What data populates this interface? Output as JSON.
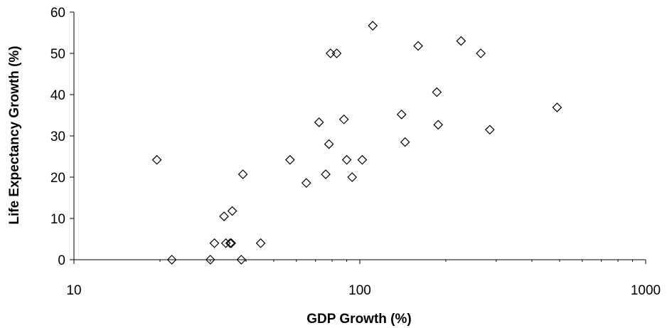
{
  "chart_data": {
    "type": "scatter",
    "title": "",
    "xlabel": "GDP Growth (%)",
    "ylabel": "Life Expectancy Growth (%)",
    "x_scale": "log",
    "xlim": [
      10,
      1000
    ],
    "ylim": [
      0,
      60
    ],
    "x_ticks": [
      "10",
      "100",
      "1000"
    ],
    "y_ticks": [
      "0",
      "10",
      "20",
      "30",
      "40",
      "50",
      "60"
    ],
    "grid": false,
    "legend": "none",
    "marker": "diamond-open",
    "marker_color": "#000000",
    "series": [
      {
        "points": [
          {
            "x": 19.5,
            "y": 24.2
          },
          {
            "x": 22,
            "y": 0
          },
          {
            "x": 30,
            "y": 0
          },
          {
            "x": 31,
            "y": 4
          },
          {
            "x": 33.5,
            "y": 10.5
          },
          {
            "x": 34,
            "y": 4
          },
          {
            "x": 35.2,
            "y": 4
          },
          {
            "x": 35.5,
            "y": 4
          },
          {
            "x": 35.8,
            "y": 11.8
          },
          {
            "x": 38.5,
            "y": 0
          },
          {
            "x": 39,
            "y": 20.7
          },
          {
            "x": 45,
            "y": 4
          },
          {
            "x": 57,
            "y": 24.2
          },
          {
            "x": 65,
            "y": 18.6
          },
          {
            "x": 72,
            "y": 33.3
          },
          {
            "x": 76,
            "y": 20.7
          },
          {
            "x": 78,
            "y": 28
          },
          {
            "x": 79,
            "y": 50
          },
          {
            "x": 83,
            "y": 50
          },
          {
            "x": 88,
            "y": 34
          },
          {
            "x": 90,
            "y": 24.2
          },
          {
            "x": 94,
            "y": 20
          },
          {
            "x": 102,
            "y": 24.2
          },
          {
            "x": 111,
            "y": 56.7
          },
          {
            "x": 140,
            "y": 35.2
          },
          {
            "x": 144,
            "y": 28.5
          },
          {
            "x": 160,
            "y": 51.8
          },
          {
            "x": 186,
            "y": 40.6
          },
          {
            "x": 188,
            "y": 32.7
          },
          {
            "x": 226,
            "y": 53
          },
          {
            "x": 265,
            "y": 50
          },
          {
            "x": 285,
            "y": 31.5
          },
          {
            "x": 490,
            "y": 36.9
          }
        ]
      }
    ]
  }
}
